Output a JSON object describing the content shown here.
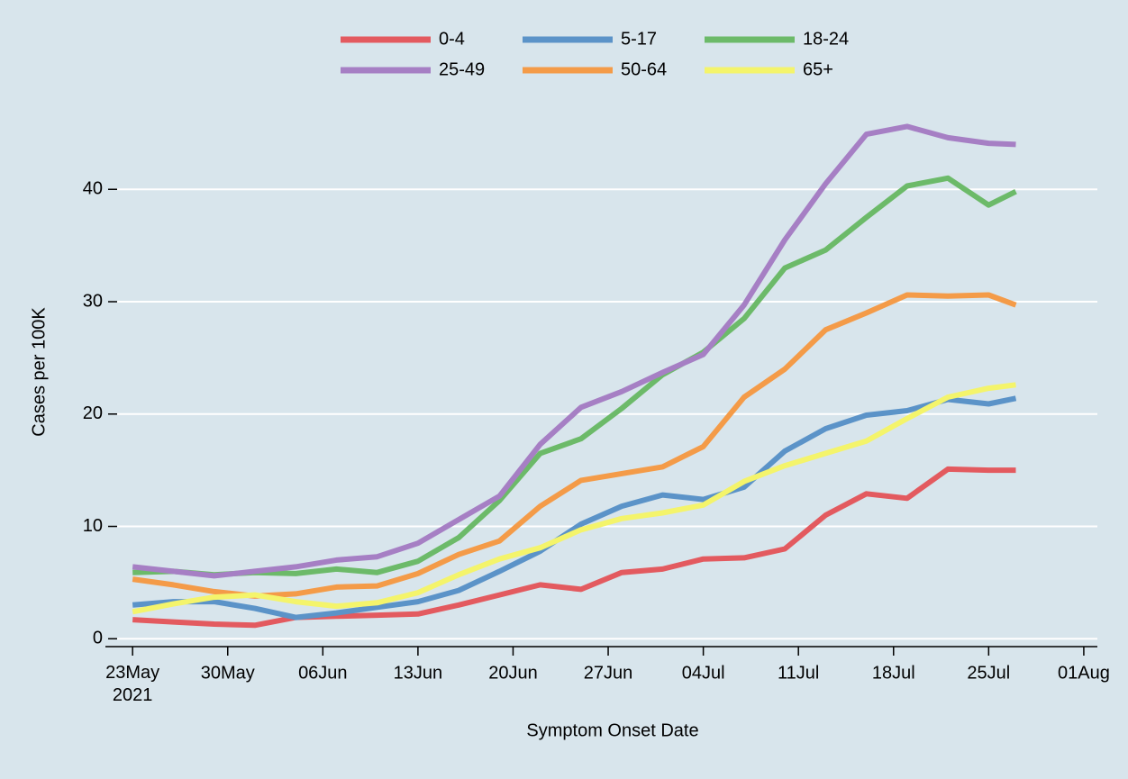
{
  "chart_data": {
    "type": "line",
    "x_label": "Symptom Onset Date",
    "y_label": "Cases per 100K",
    "x": [
      "2021-05-23",
      "2021-05-26",
      "2021-05-29",
      "2021-06-01",
      "2021-06-04",
      "2021-06-07",
      "2021-06-10",
      "2021-06-13",
      "2021-06-16",
      "2021-06-19",
      "2021-06-22",
      "2021-06-25",
      "2021-06-28",
      "2021-07-01",
      "2021-07-04",
      "2021-07-07",
      "2021-07-10",
      "2021-07-13",
      "2021-07-16",
      "2021-07-19",
      "2021-07-22",
      "2021-07-25",
      "2021-07-27"
    ],
    "series": [
      {
        "name": "0-4",
        "color": "#e35a5f",
        "values": [
          1.7,
          1.5,
          1.3,
          1.2,
          1.9,
          2.0,
          2.1,
          2.2,
          3.0,
          3.9,
          4.8,
          4.4,
          5.9,
          6.2,
          7.1,
          7.2,
          8.0,
          11.0,
          12.9,
          12.5,
          15.1,
          15.0,
          15.0
        ]
      },
      {
        "name": "5-17",
        "color": "#5b93c8",
        "values": [
          3.0,
          3.3,
          3.3,
          2.7,
          1.9,
          2.3,
          2.8,
          3.3,
          4.3,
          6.0,
          7.8,
          10.2,
          11.8,
          12.8,
          12.4,
          13.5,
          16.7,
          18.7,
          19.9,
          20.3,
          21.3,
          20.9,
          21.4
        ]
      },
      {
        "name": "18-24",
        "color": "#6cba69",
        "values": [
          5.9,
          6.0,
          5.7,
          5.9,
          5.8,
          6.2,
          5.9,
          6.9,
          9.0,
          12.3,
          16.5,
          17.8,
          20.5,
          23.5,
          25.5,
          28.5,
          33.0,
          34.6,
          37.5,
          40.3,
          41.0,
          38.6,
          39.8
        ]
      },
      {
        "name": "25-49",
        "color": "#a67fc4",
        "values": [
          6.4,
          6.0,
          5.6,
          6.0,
          6.4,
          7.0,
          7.3,
          8.5,
          10.6,
          12.7,
          17.3,
          20.6,
          22.0,
          23.7,
          25.3,
          29.7,
          35.5,
          40.5,
          44.9,
          45.6,
          44.6,
          44.1,
          44.0
        ]
      },
      {
        "name": "50-64",
        "color": "#f49b48",
        "values": [
          5.3,
          4.8,
          4.2,
          3.8,
          4.0,
          4.6,
          4.7,
          5.8,
          7.5,
          8.7,
          11.8,
          14.1,
          14.7,
          15.3,
          17.1,
          21.5,
          24.0,
          27.5,
          29.0,
          30.6,
          30.5,
          30.6,
          29.7
        ]
      },
      {
        "name": "65+",
        "color": "#f4f46b",
        "values": [
          2.4,
          3.1,
          3.7,
          3.9,
          3.3,
          2.9,
          3.2,
          4.1,
          5.7,
          7.1,
          8.1,
          9.7,
          10.7,
          11.2,
          11.9,
          14.0,
          15.4,
          16.5,
          17.6,
          19.6,
          21.5,
          22.3,
          22.6
        ]
      }
    ],
    "xlim": [
      "2021-05-21",
      "2021-08-02"
    ],
    "xticks": [
      {
        "value": "2021-05-23",
        "label": "23May\n2021"
      },
      {
        "value": "2021-05-30",
        "label": "30May"
      },
      {
        "value": "2021-06-06",
        "label": "06Jun"
      },
      {
        "value": "2021-06-13",
        "label": "13Jun"
      },
      {
        "value": "2021-06-20",
        "label": "20Jun"
      },
      {
        "value": "2021-06-27",
        "label": "27Jun"
      },
      {
        "value": "2021-07-04",
        "label": "04Jul"
      },
      {
        "value": "2021-07-11",
        "label": "11Jul"
      },
      {
        "value": "2021-07-18",
        "label": "18Jul"
      },
      {
        "value": "2021-07-25",
        "label": "25Jul"
      },
      {
        "value": "2021-08-01",
        "label": "01Aug"
      }
    ],
    "ylim": [
      -0.7,
      50
    ],
    "yticks": [
      0,
      10,
      20,
      30,
      40
    ],
    "grid": true,
    "legend": "top"
  }
}
